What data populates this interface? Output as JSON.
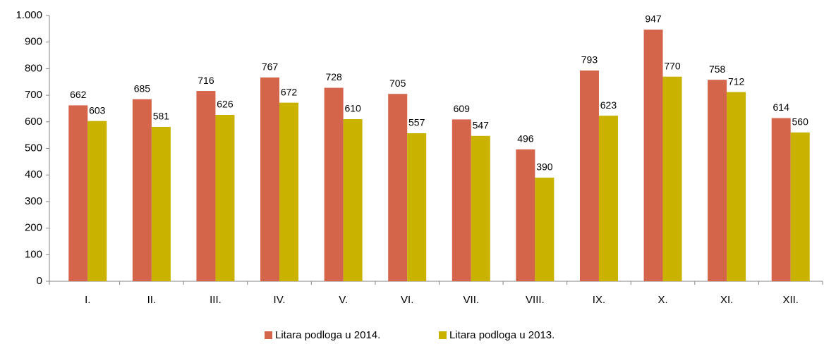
{
  "chart_data": {
    "type": "bar",
    "categories": [
      "I.",
      "II.",
      "III.",
      "IV.",
      "V.",
      "VI.",
      "VII.",
      "VIII.",
      "IX.",
      "X.",
      "XI.",
      "XII."
    ],
    "series": [
      {
        "name": "Litara podloga u 2014.",
        "color": "#d4654b",
        "values": [
          662,
          685,
          716,
          767,
          728,
          705,
          609,
          496,
          793,
          947,
          758,
          614
        ]
      },
      {
        "name": "Litara podloga u 2013.",
        "color": "#c9b200",
        "values": [
          603,
          581,
          626,
          672,
          610,
          557,
          547,
          390,
          623,
          770,
          712,
          560
        ]
      }
    ],
    "ylim": [
      0,
      1000
    ],
    "yticks": [
      0,
      100,
      200,
      300,
      400,
      500,
      600,
      700,
      800,
      900,
      {
        "value": 1000,
        "label": "1.000"
      }
    ],
    "grid": false,
    "legend": "bottom"
  }
}
